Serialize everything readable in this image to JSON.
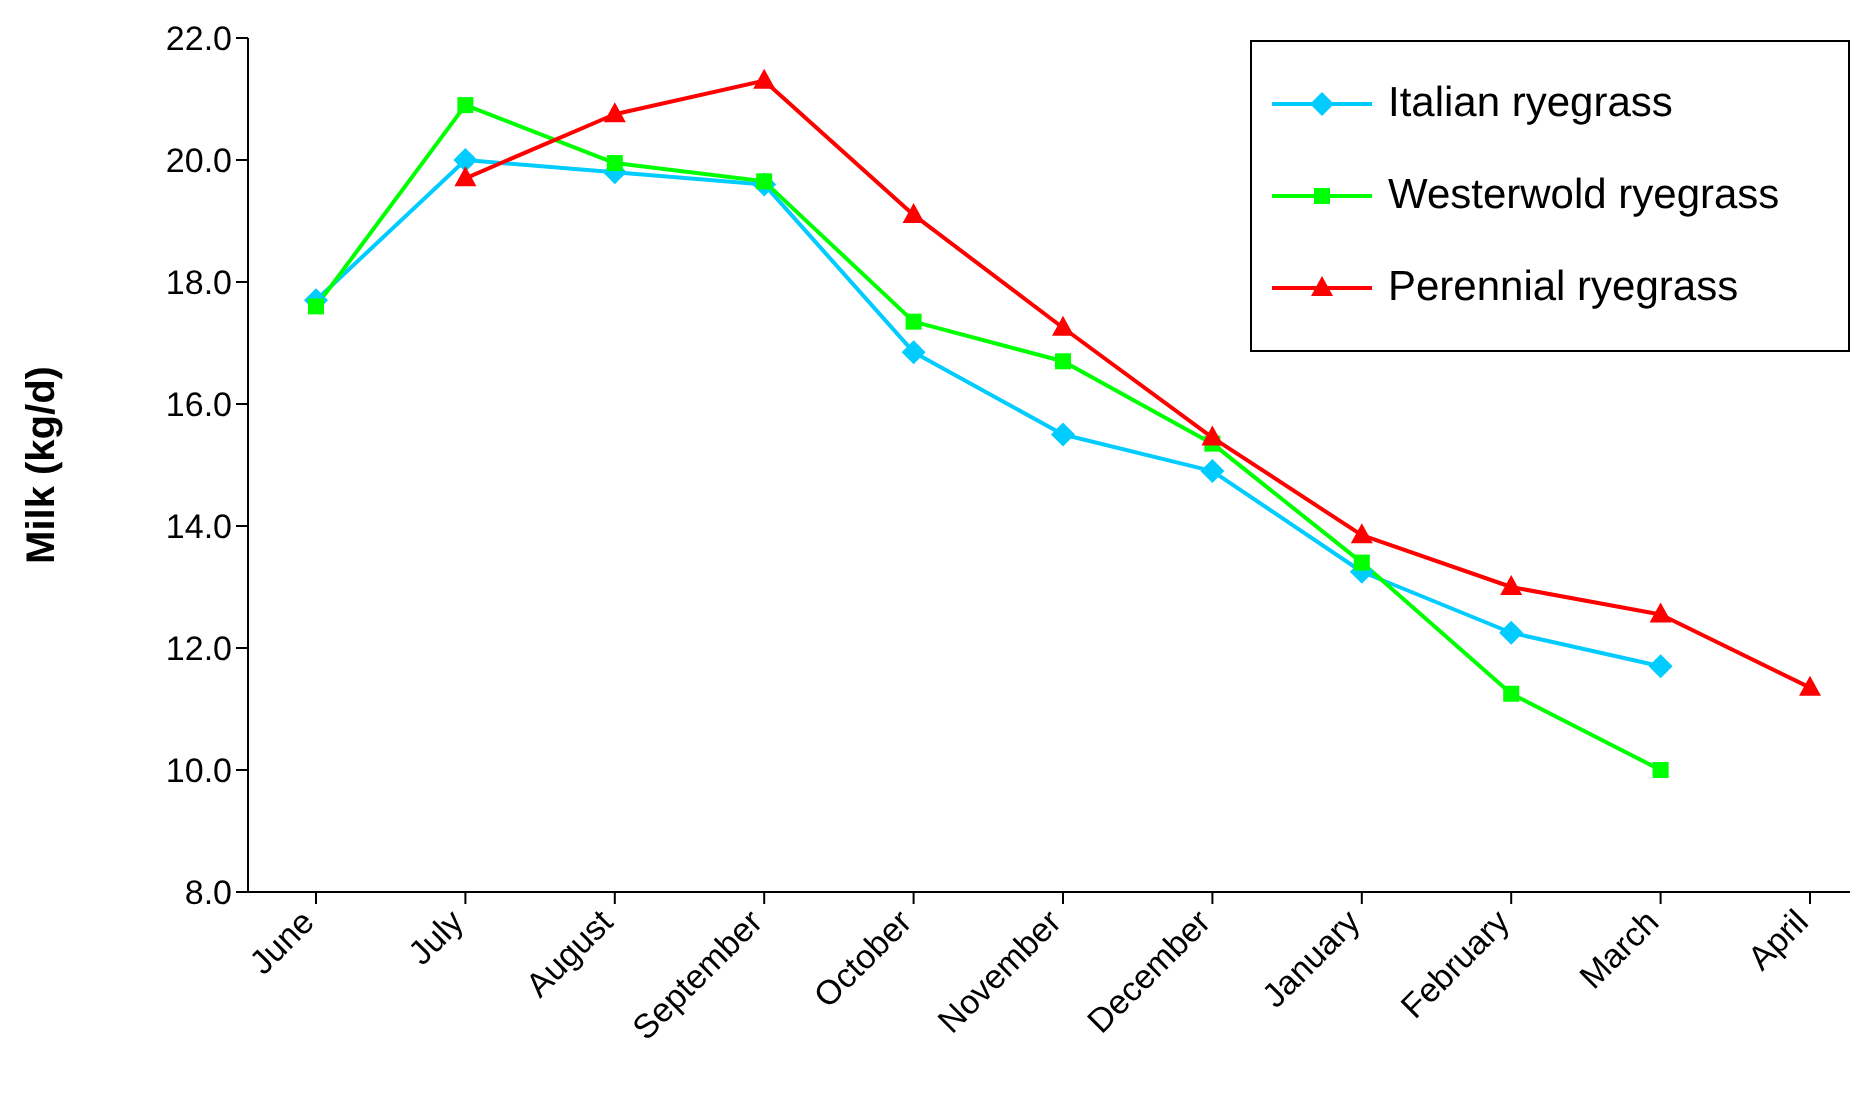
{
  "chart_data": {
    "type": "line",
    "ylabel": "Milk (kg/d)",
    "categories": [
      "June",
      "July",
      "August",
      "September",
      "October",
      "November",
      "December",
      "January",
      "February",
      "March",
      "April"
    ],
    "series": [
      {
        "name": "Italian ryegrass",
        "color": "#00ccff",
        "marker": "diamond",
        "values": [
          17.7,
          20.0,
          19.8,
          19.6,
          16.85,
          15.5,
          14.9,
          13.25,
          12.25,
          11.7,
          null
        ]
      },
      {
        "name": "Westerwold ryegrass",
        "color": "#00ff00",
        "marker": "square",
        "values": [
          17.6,
          20.9,
          19.95,
          19.65,
          17.35,
          16.7,
          15.35,
          13.4,
          11.25,
          10.0,
          null
        ]
      },
      {
        "name": "Perennial ryegrass",
        "color": "#ff0000",
        "marker": "triangle",
        "values": [
          null,
          19.7,
          20.75,
          21.3,
          19.1,
          17.25,
          15.45,
          13.85,
          13.0,
          12.55,
          11.35
        ]
      }
    ],
    "ylim": [
      8,
      22
    ],
    "yticks": [
      {
        "value": 8,
        "label": "8.0"
      },
      {
        "value": 10,
        "label": "10.0"
      },
      {
        "value": 12,
        "label": "12.0"
      },
      {
        "value": 14,
        "label": "14.0"
      },
      {
        "value": 16,
        "label": "16.0"
      },
      {
        "value": 18,
        "label": "18.0"
      },
      {
        "value": 20,
        "label": "20.0"
      },
      {
        "value": 22,
        "label": "22.0"
      }
    ],
    "grid": false,
    "legend": "top right",
    "line_style": "solid"
  }
}
